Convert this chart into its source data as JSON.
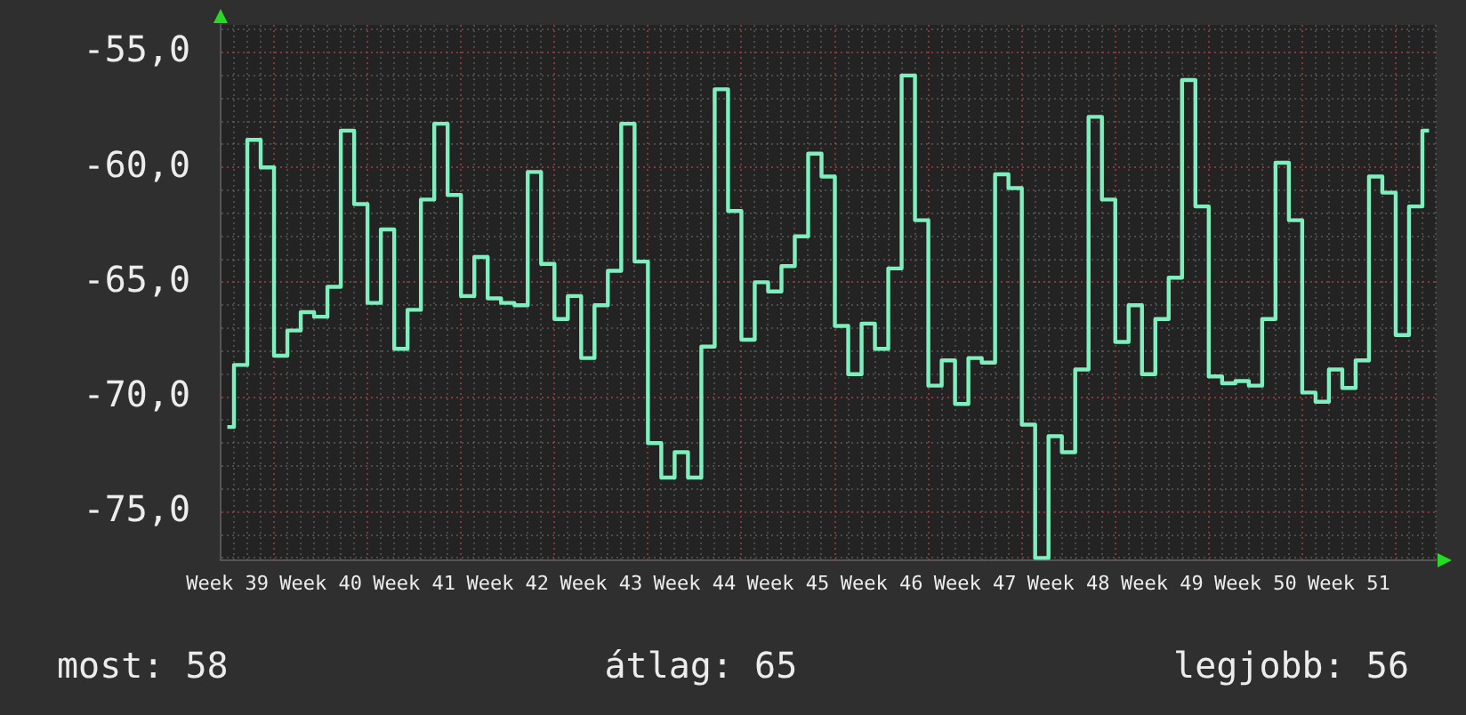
{
  "chart_data": {
    "type": "step",
    "color": "#7ff0bd",
    "marker": "none",
    "grid": true,
    "categories": [
      "Week 39",
      null,
      null,
      null,
      null,
      null,
      null,
      "Week 40",
      null,
      null,
      null,
      null,
      null,
      null,
      "Week 41",
      null,
      null,
      null,
      null,
      null,
      null,
      "Week 42",
      null,
      null,
      null,
      null,
      null,
      null,
      "Week 43",
      null,
      null,
      null,
      null,
      null,
      null,
      "Week 44",
      null,
      null,
      null,
      null,
      null,
      null,
      "Week 45",
      null,
      null,
      null,
      null,
      null,
      null,
      "Week 46",
      null,
      null,
      null,
      null,
      null,
      null,
      "Week 47",
      null,
      null,
      null,
      null,
      null,
      null,
      "Week 48",
      null,
      null,
      null,
      null,
      null,
      null,
      "Week 49",
      null,
      null,
      null,
      null,
      null,
      null,
      "Week 50",
      null,
      null,
      null,
      null,
      null,
      null,
      "Week 51",
      null,
      null,
      null,
      null,
      null,
      null
    ],
    "values": [
      -71.3,
      -68.6,
      -58.8,
      -60.0,
      -68.2,
      -67.1,
      -66.3,
      -66.5,
      -65.2,
      -58.4,
      -61.6,
      -65.9,
      -62.7,
      -67.9,
      -66.2,
      -61.4,
      -58.1,
      -61.2,
      -65.6,
      -63.9,
      -65.7,
      -65.9,
      -66.0,
      -60.2,
      -64.2,
      -66.6,
      -65.6,
      -68.3,
      -66.0,
      -64.5,
      -58.1,
      -64.1,
      -72.0,
      -73.5,
      -72.4,
      -73.5,
      -67.8,
      -56.6,
      -61.9,
      -67.5,
      -65.0,
      -65.4,
      -64.3,
      -63.0,
      -59.4,
      -60.4,
      -66.9,
      -69.0,
      -66.8,
      -67.9,
      -64.4,
      -56.0,
      -62.3,
      -69.5,
      -68.4,
      -70.3,
      -68.3,
      -68.5,
      -60.3,
      -60.9,
      -71.2,
      -77.0,
      -71.7,
      -72.4,
      -68.8,
      -57.8,
      -61.4,
      -67.6,
      -66.0,
      -69.0,
      -66.6,
      -64.8,
      -56.2,
      -61.7,
      -69.1,
      -69.4,
      -69.3,
      -69.5,
      -66.6,
      -59.8,
      -62.3,
      -69.8,
      -70.2,
      -68.8,
      -69.6,
      -68.4,
      -60.4,
      -61.1,
      -67.3,
      -61.7,
      -58.4
    ],
    "ylim": [
      -77.1,
      -53.8
    ],
    "yticks": [
      {
        "value": -77,
        "label": null
      },
      {
        "value": -76,
        "label": null
      },
      {
        "value": -75,
        "label": "-75,0"
      },
      {
        "value": -74,
        "label": null
      },
      {
        "value": -73,
        "label": null
      },
      {
        "value": -72,
        "label": null
      },
      {
        "value": -71,
        "label": null
      },
      {
        "value": -70,
        "label": "-70,0"
      },
      {
        "value": -69,
        "label": null
      },
      {
        "value": -68,
        "label": null
      },
      {
        "value": -67,
        "label": null
      },
      {
        "value": -66,
        "label": null
      },
      {
        "value": -65,
        "label": "-65,0"
      },
      {
        "value": -64,
        "label": null
      },
      {
        "value": -63,
        "label": null
      },
      {
        "value": -62,
        "label": null
      },
      {
        "value": -61,
        "label": null
      },
      {
        "value": -60,
        "label": "-60,0"
      },
      {
        "value": -59,
        "label": null
      },
      {
        "value": -58,
        "label": null
      },
      {
        "value": -57,
        "label": null
      },
      {
        "value": -56,
        "label": null
      },
      {
        "value": -55,
        "label": "-55,0"
      },
      {
        "value": -54,
        "label": null
      }
    ],
    "annotations": [
      "most: 58",
      "átlag: 65",
      "legjobb: 56"
    ]
  }
}
